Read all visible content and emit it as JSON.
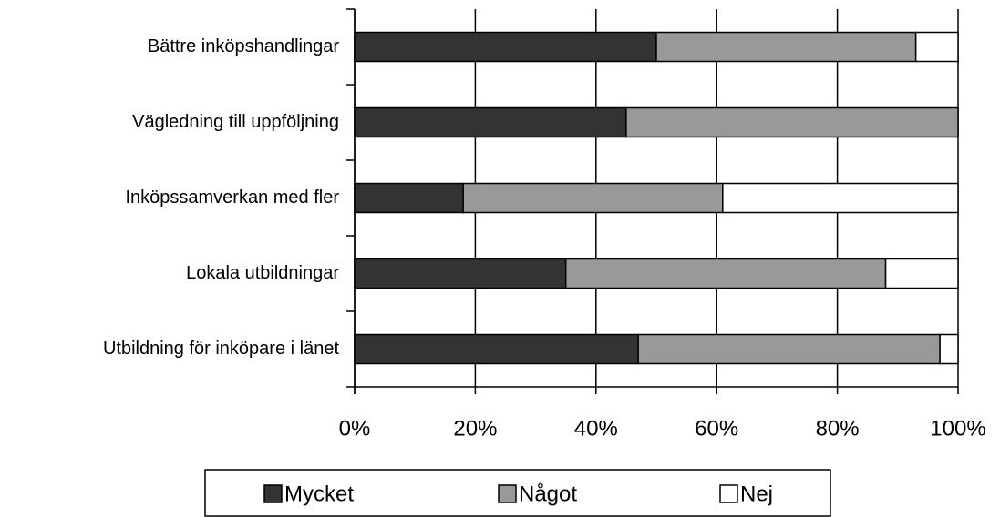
{
  "chart_data": {
    "type": "bar",
    "stacked": true,
    "orientation": "horizontal",
    "categories": [
      "Bättre inköpshandlingar",
      "Vägledning till uppföljning",
      "Inköpssamverkan med fler",
      "Lokala utbildningar",
      "Utbildning för inköpare i länet"
    ],
    "series": [
      {
        "name": "Mycket",
        "color": "#333333",
        "values": [
          50,
          45,
          18,
          35,
          47
        ]
      },
      {
        "name": "Något",
        "color": "#999999",
        "values": [
          43,
          55,
          43,
          53,
          50
        ]
      },
      {
        "name": "Nej",
        "color": "#ffffff",
        "values": [
          7,
          0,
          39,
          12,
          3
        ]
      }
    ],
    "xlim": [
      0,
      100
    ],
    "xticks": [
      {
        "value": 0,
        "label": "0%"
      },
      {
        "value": 20,
        "label": "20%"
      },
      {
        "value": 40,
        "label": "40%"
      },
      {
        "value": 60,
        "label": "60%"
      },
      {
        "value": 80,
        "label": "80%"
      },
      {
        "value": 100,
        "label": "100%"
      }
    ],
    "grid": true,
    "legend": "bottom"
  }
}
